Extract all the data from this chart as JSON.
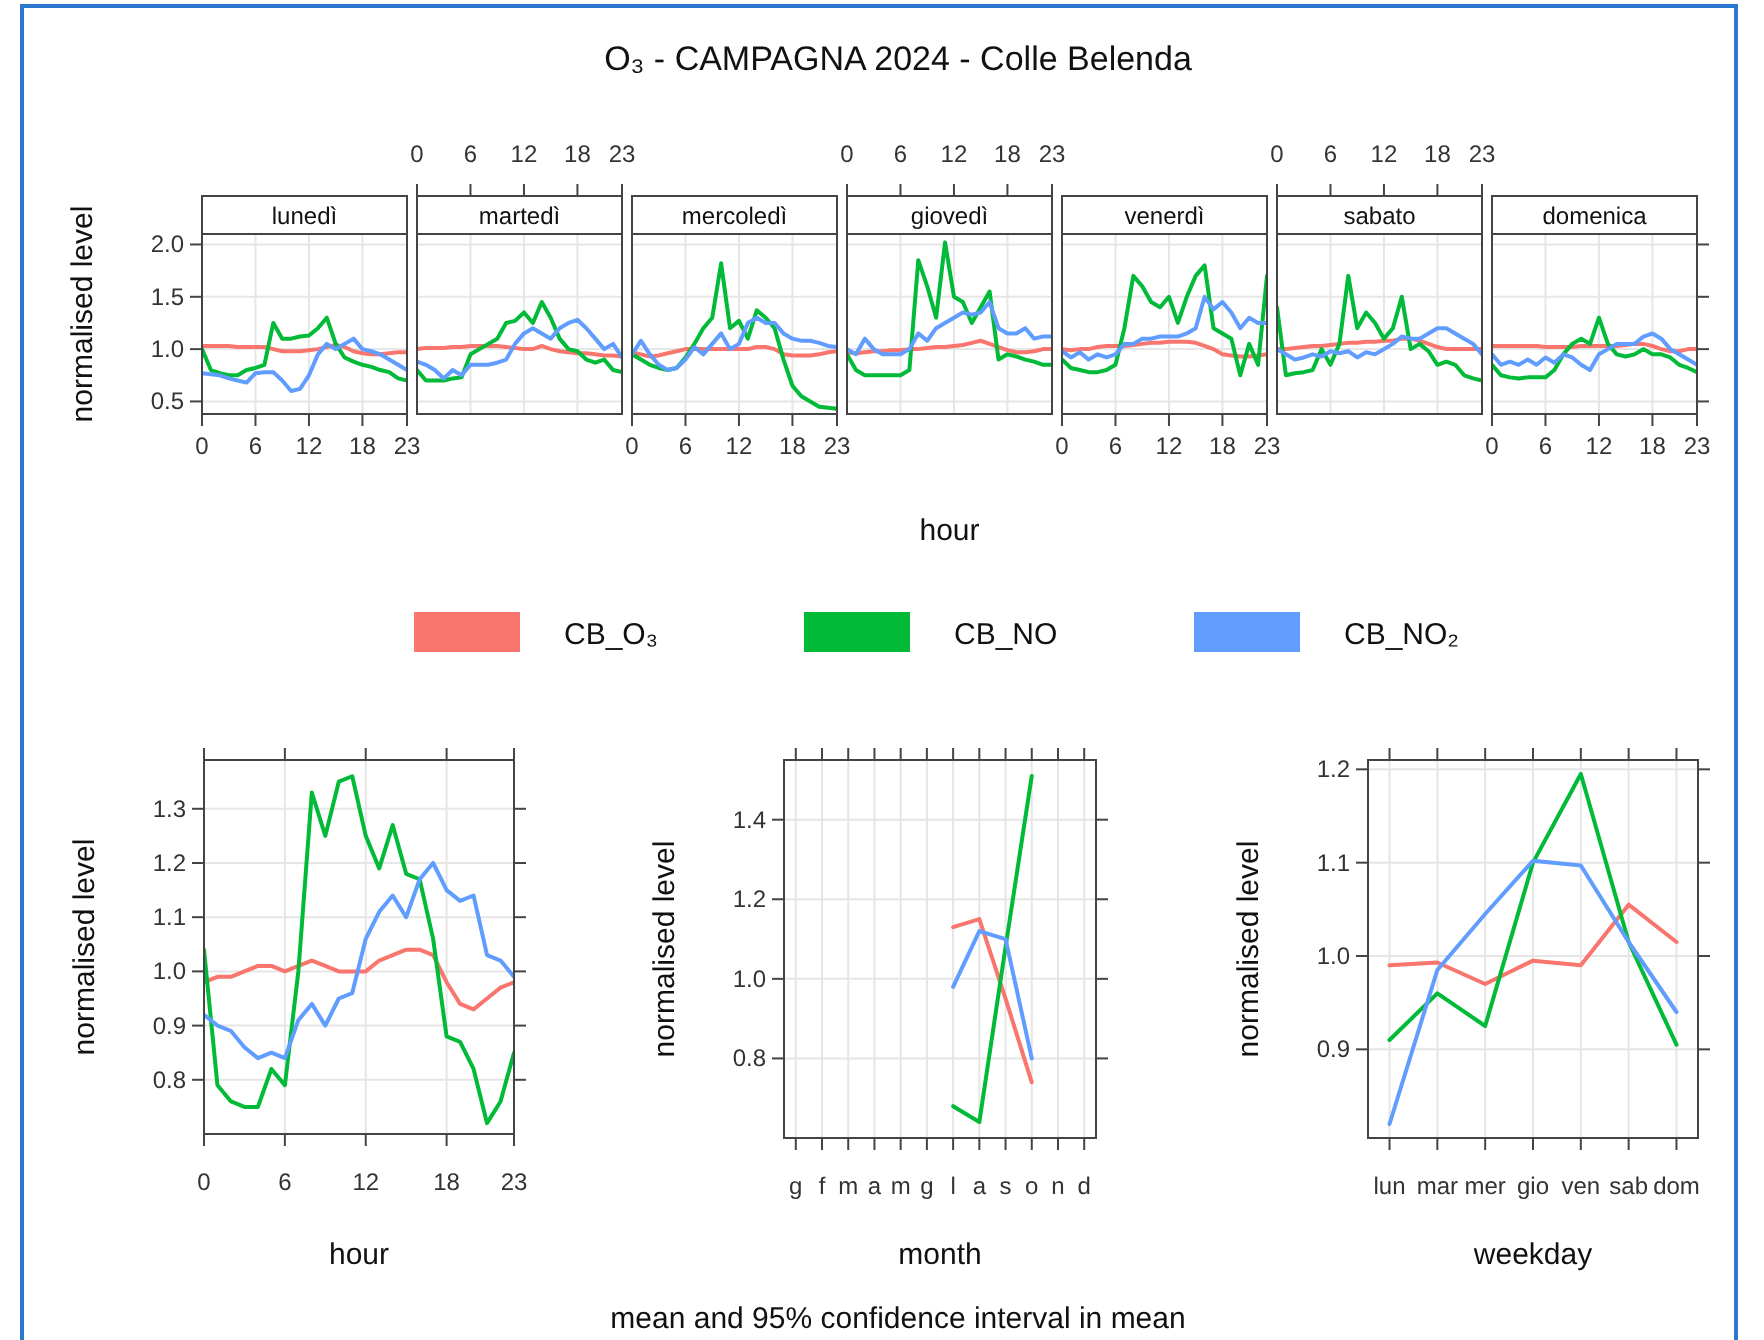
{
  "chart_data": [
    {
      "type": "other",
      "title": "O₃ - CAMPAGNA 2024 - Colle Belenda",
      "annotations": [
        "mean and 95% confidence interval in mean"
      ]
    },
    {
      "type": "line",
      "title": "lunedì",
      "ylabel": "normalised level",
      "legend": "bottom",
      "grid": true,
      "x": [
        0,
        1,
        2,
        3,
        4,
        5,
        6,
        7,
        8,
        9,
        10,
        11,
        12,
        13,
        14,
        15,
        16,
        17,
        18,
        19,
        20,
        21,
        22,
        23
      ],
      "xlim": [
        0,
        23
      ],
      "xticks": [
        0,
        6,
        12,
        18,
        23
      ],
      "ylim": [
        0.38,
        2.1
      ],
      "yticks": [
        {
          "value": 0.5,
          "label": "0.5"
        },
        {
          "value": 1,
          "label": "1.0"
        },
        {
          "value": 1.5,
          "label": "1.5"
        },
        {
          "value": 2,
          "label": "2.0"
        }
      ],
      "series": [
        {
          "name": "CB_O₃",
          "color": "#f8766d",
          "values": [
            1.03,
            1.03,
            1.03,
            1.03,
            1.02,
            1.02,
            1.02,
            1.02,
            1.0,
            0.98,
            0.98,
            0.98,
            0.99,
            1.0,
            1.02,
            1.04,
            1.02,
            0.98,
            0.96,
            0.95,
            0.95,
            0.96,
            0.97,
            0.97
          ]
        },
        {
          "name": "CB_NO",
          "color": "#00ba38",
          "values": [
            1.0,
            0.8,
            0.77,
            0.75,
            0.75,
            0.8,
            0.82,
            0.85,
            1.25,
            1.1,
            1.1,
            1.12,
            1.13,
            1.2,
            1.3,
            1.05,
            0.92,
            0.88,
            0.85,
            0.83,
            0.8,
            0.78,
            0.72,
            0.7
          ]
        },
        {
          "name": "CB_NO₂",
          "color": "#619cff",
          "values": [
            0.77,
            0.76,
            0.75,
            0.72,
            0.7,
            0.68,
            0.77,
            0.78,
            0.78,
            0.7,
            0.6,
            0.62,
            0.75,
            0.95,
            1.05,
            1.0,
            1.05,
            1.1,
            1.0,
            0.98,
            0.95,
            0.9,
            0.85,
            0.8
          ]
        }
      ]
    },
    {
      "type": "line",
      "title": "martedì",
      "tick_labels": "x",
      "grid": true,
      "x": [
        0,
        1,
        2,
        3,
        4,
        5,
        6,
        7,
        8,
        9,
        10,
        11,
        12,
        13,
        14,
        15,
        16,
        17,
        18,
        19,
        20,
        21,
        22,
        23
      ],
      "xlim": [
        0,
        23
      ],
      "x2lim": [
        0,
        23
      ],
      "x2ticks": [
        0,
        6,
        12,
        18,
        23
      ],
      "ylim": [
        0.38,
        2.1
      ],
      "yticks": [
        0.5,
        1,
        1.5,
        2
      ],
      "series": [
        {
          "color": "#f8766d",
          "values": [
            1.0,
            1.01,
            1.01,
            1.01,
            1.02,
            1.02,
            1.03,
            1.03,
            1.03,
            1.03,
            1.02,
            1.01,
            1.0,
            1.0,
            1.03,
            1.0,
            0.98,
            0.97,
            0.96,
            0.96,
            0.95,
            0.94,
            0.94,
            0.93
          ]
        },
        {
          "color": "#00ba38",
          "values": [
            0.8,
            0.7,
            0.7,
            0.7,
            0.72,
            0.73,
            0.95,
            1.0,
            1.05,
            1.1,
            1.25,
            1.27,
            1.35,
            1.25,
            1.45,
            1.3,
            1.1,
            1.0,
            0.98,
            0.9,
            0.87,
            0.9,
            0.8,
            0.78
          ]
        },
        {
          "color": "#619cff",
          "values": [
            0.88,
            0.85,
            0.8,
            0.72,
            0.8,
            0.75,
            0.85,
            0.85,
            0.85,
            0.87,
            0.9,
            1.05,
            1.15,
            1.2,
            1.15,
            1.1,
            1.2,
            1.25,
            1.28,
            1.2,
            1.1,
            1.0,
            1.05,
            0.92
          ]
        }
      ]
    },
    {
      "type": "line",
      "title": "mercoledì",
      "tick_labels": "x",
      "grid": true,
      "x": [
        0,
        1,
        2,
        3,
        4,
        5,
        6,
        7,
        8,
        9,
        10,
        11,
        12,
        13,
        14,
        15,
        16,
        17,
        18,
        19,
        20,
        21,
        22,
        23
      ],
      "xlim": [
        0,
        23
      ],
      "xticks": [
        0,
        6,
        12,
        18,
        23
      ],
      "ylim": [
        0.38,
        2.1
      ],
      "yticks": [
        0.5,
        1,
        1.5,
        2
      ],
      "series": [
        {
          "color": "#f8766d",
          "values": [
            0.97,
            0.95,
            0.93,
            0.94,
            0.96,
            0.98,
            1.0,
            1.0,
            1.0,
            1.0,
            1.0,
            1.0,
            1.0,
            1.0,
            1.02,
            1.02,
            1.0,
            0.95,
            0.94,
            0.94,
            0.94,
            0.95,
            0.97,
            0.98
          ]
        },
        {
          "color": "#00ba38",
          "values": [
            0.95,
            0.9,
            0.85,
            0.82,
            0.8,
            0.82,
            0.92,
            1.05,
            1.2,
            1.3,
            1.82,
            1.2,
            1.27,
            1.1,
            1.37,
            1.3,
            1.2,
            0.9,
            0.65,
            0.55,
            0.5,
            0.45,
            0.44,
            0.43
          ]
        },
        {
          "color": "#619cff",
          "values": [
            0.95,
            1.08,
            0.95,
            0.85,
            0.8,
            0.82,
            0.9,
            1.02,
            0.95,
            1.05,
            1.15,
            1.0,
            1.05,
            1.25,
            1.3,
            1.25,
            1.25,
            1.15,
            1.1,
            1.08,
            1.08,
            1.06,
            1.03,
            1.02
          ]
        }
      ]
    },
    {
      "type": "line",
      "title": "giovedì",
      "xlabel": "hour",
      "tick_labels": "x",
      "grid": true,
      "x": [
        0,
        1,
        2,
        3,
        4,
        5,
        6,
        7,
        8,
        9,
        10,
        11,
        12,
        13,
        14,
        15,
        16,
        17,
        18,
        19,
        20,
        21,
        22,
        23
      ],
      "xlim": [
        0,
        23
      ],
      "x2lim": [
        0,
        23
      ],
      "x2ticks": [
        0,
        6,
        12,
        18,
        23
      ],
      "ylim": [
        0.38,
        2.1
      ],
      "yticks": [
        0.5,
        1,
        1.5,
        2
      ],
      "series": [
        {
          "color": "#f8766d",
          "values": [
            0.97,
            0.96,
            0.97,
            0.98,
            0.98,
            0.99,
            0.99,
            1.0,
            1.0,
            1.01,
            1.02,
            1.02,
            1.03,
            1.04,
            1.06,
            1.08,
            1.05,
            1.02,
            0.99,
            0.97,
            0.97,
            0.98,
            1.0,
            1.0
          ]
        },
        {
          "color": "#00ba38",
          "values": [
            0.95,
            0.8,
            0.75,
            0.75,
            0.75,
            0.75,
            0.75,
            0.8,
            1.85,
            1.6,
            1.3,
            2.02,
            1.5,
            1.45,
            1.25,
            1.4,
            1.55,
            0.9,
            0.95,
            0.93,
            0.9,
            0.88,
            0.85,
            0.85
          ]
        },
        {
          "color": "#619cff",
          "values": [
            1.0,
            0.95,
            1.1,
            1.0,
            0.95,
            0.95,
            0.95,
            1.0,
            1.15,
            1.08,
            1.2,
            1.25,
            1.3,
            1.35,
            1.33,
            1.35,
            1.45,
            1.2,
            1.15,
            1.15,
            1.2,
            1.1,
            1.12,
            1.12
          ]
        }
      ]
    },
    {
      "type": "line",
      "title": "venerdì",
      "tick_labels": "x",
      "grid": true,
      "x": [
        0,
        1,
        2,
        3,
        4,
        5,
        6,
        7,
        8,
        9,
        10,
        11,
        12,
        13,
        14,
        15,
        16,
        17,
        18,
        19,
        20,
        21,
        22,
        23
      ],
      "xlim": [
        0,
        23
      ],
      "xticks": [
        0,
        6,
        12,
        18,
        23
      ],
      "ylim": [
        0.38,
        2.1
      ],
      "yticks": [
        0.5,
        1,
        1.5,
        2
      ],
      "series": [
        {
          "color": "#f8766d",
          "values": [
            1.0,
            0.99,
            1.0,
            1.0,
            1.02,
            1.03,
            1.03,
            1.03,
            1.04,
            1.05,
            1.06,
            1.06,
            1.07,
            1.07,
            1.07,
            1.06,
            1.03,
            1.0,
            0.95,
            0.94,
            0.93,
            0.93,
            0.94,
            0.95
          ]
        },
        {
          "color": "#00ba38",
          "values": [
            0.9,
            0.82,
            0.8,
            0.78,
            0.78,
            0.8,
            0.85,
            1.2,
            1.7,
            1.6,
            1.45,
            1.4,
            1.5,
            1.25,
            1.5,
            1.7,
            1.8,
            1.2,
            1.15,
            1.1,
            0.75,
            1.05,
            0.85,
            1.7
          ]
        },
        {
          "color": "#619cff",
          "values": [
            0.98,
            0.92,
            0.97,
            0.9,
            0.95,
            0.92,
            0.95,
            1.05,
            1.05,
            1.1,
            1.1,
            1.12,
            1.12,
            1.12,
            1.15,
            1.2,
            1.5,
            1.38,
            1.45,
            1.35,
            1.2,
            1.3,
            1.25,
            1.25
          ]
        }
      ]
    },
    {
      "type": "line",
      "title": "sabato",
      "tick_labels": "x",
      "grid": true,
      "x": [
        0,
        1,
        2,
        3,
        4,
        5,
        6,
        7,
        8,
        9,
        10,
        11,
        12,
        13,
        14,
        15,
        16,
        17,
        18,
        19,
        20,
        21,
        22,
        23
      ],
      "xlim": [
        0,
        23
      ],
      "x2lim": [
        0,
        23
      ],
      "x2ticks": [
        0,
        6,
        12,
        18,
        23
      ],
      "ylim": [
        0.38,
        2.1
      ],
      "yticks": [
        0.5,
        1,
        1.5,
        2
      ],
      "series": [
        {
          "color": "#f8766d",
          "values": [
            1.0,
            1.0,
            1.01,
            1.02,
            1.03,
            1.03,
            1.04,
            1.05,
            1.06,
            1.06,
            1.07,
            1.07,
            1.08,
            1.08,
            1.1,
            1.1,
            1.08,
            1.05,
            1.02,
            1.0,
            1.0,
            1.0,
            1.0,
            1.0
          ]
        },
        {
          "color": "#00ba38",
          "values": [
            1.4,
            0.75,
            0.77,
            0.78,
            0.8,
            1.0,
            0.85,
            1.05,
            1.7,
            1.2,
            1.35,
            1.25,
            1.1,
            1.2,
            1.5,
            1.0,
            1.05,
            0.98,
            0.85,
            0.88,
            0.85,
            0.75,
            0.72,
            0.7
          ]
        },
        {
          "color": "#619cff",
          "values": [
            1.0,
            0.95,
            0.9,
            0.92,
            0.95,
            0.93,
            0.98,
            0.96,
            0.98,
            0.92,
            0.97,
            0.95,
            1.0,
            1.05,
            1.12,
            1.1,
            1.1,
            1.15,
            1.2,
            1.2,
            1.15,
            1.1,
            1.05,
            0.95
          ]
        }
      ]
    },
    {
      "type": "line",
      "title": "domenica",
      "tick_labels": "x",
      "grid": true,
      "x": [
        0,
        1,
        2,
        3,
        4,
        5,
        6,
        7,
        8,
        9,
        10,
        11,
        12,
        13,
        14,
        15,
        16,
        17,
        18,
        19,
        20,
        21,
        22,
        23
      ],
      "xlim": [
        0,
        23
      ],
      "xticks": [
        0,
        6,
        12,
        18,
        23
      ],
      "ylim": [
        0.38,
        2.1
      ],
      "yticks": [
        0.5,
        1,
        1.5,
        2
      ],
      "series": [
        {
          "color": "#f8766d",
          "values": [
            1.03,
            1.03,
            1.03,
            1.03,
            1.03,
            1.03,
            1.02,
            1.02,
            1.02,
            1.02,
            1.03,
            1.03,
            1.03,
            1.03,
            1.03,
            1.04,
            1.05,
            1.05,
            1.03,
            1.0,
            0.98,
            0.98,
            1.0,
            1.0
          ]
        },
        {
          "color": "#00ba38",
          "values": [
            0.85,
            0.75,
            0.73,
            0.72,
            0.73,
            0.73,
            0.73,
            0.8,
            0.95,
            1.05,
            1.1,
            1.05,
            1.3,
            1.05,
            0.95,
            0.93,
            0.95,
            1.0,
            0.95,
            0.95,
            0.92,
            0.85,
            0.82,
            0.78
          ]
        },
        {
          "color": "#619cff",
          "values": [
            0.95,
            0.85,
            0.88,
            0.85,
            0.9,
            0.85,
            0.92,
            0.87,
            0.95,
            0.92,
            0.85,
            0.8,
            0.95,
            1.0,
            1.05,
            1.05,
            1.05,
            1.12,
            1.15,
            1.1,
            1.0,
            0.95,
            0.9,
            0.85
          ]
        }
      ]
    },
    {
      "type": "line",
      "xlabel": "hour",
      "ylabel": "normalised level",
      "grid": true,
      "x": [
        0,
        1,
        2,
        3,
        4,
        5,
        6,
        7,
        8,
        9,
        10,
        11,
        12,
        13,
        14,
        15,
        16,
        17,
        18,
        19,
        20,
        21,
        22,
        23
      ],
      "xlim": [
        0,
        23
      ],
      "xticks": [
        0,
        6,
        12,
        18,
        23
      ],
      "ylim": [
        0.7,
        1.39
      ],
      "yticks": [
        0.8,
        0.9,
        {
          "value": 1,
          "label": "1.0"
        },
        1.1,
        1.2,
        1.3
      ],
      "series": [
        {
          "color": "#f8766d",
          "values": [
            0.98,
            0.99,
            0.99,
            1.0,
            1.01,
            1.01,
            1.0,
            1.01,
            1.02,
            1.01,
            1.0,
            1.0,
            1.0,
            1.02,
            1.03,
            1.04,
            1.04,
            1.03,
            0.98,
            0.94,
            0.93,
            0.95,
            0.97,
            0.98
          ]
        },
        {
          "color": "#00ba38",
          "values": [
            1.04,
            0.79,
            0.76,
            0.75,
            0.75,
            0.82,
            0.79,
            1.0,
            1.33,
            1.25,
            1.35,
            1.36,
            1.25,
            1.19,
            1.27,
            1.18,
            1.17,
            1.06,
            0.88,
            0.87,
            0.82,
            0.72,
            0.76,
            0.85
          ]
        },
        {
          "color": "#619cff",
          "values": [
            0.92,
            0.9,
            0.89,
            0.86,
            0.84,
            0.85,
            0.84,
            0.91,
            0.94,
            0.9,
            0.95,
            0.96,
            1.06,
            1.11,
            1.14,
            1.1,
            1.17,
            1.2,
            1.15,
            1.13,
            1.14,
            1.03,
            1.02,
            0.99
          ]
        }
      ]
    },
    {
      "type": "line",
      "xlabel": "month",
      "ylabel": "normalised level",
      "grid": true,
      "categories": [
        "g",
        "f",
        "m",
        "a",
        "m",
        "g",
        "l",
        "a",
        "s",
        "o",
        "n",
        "d"
      ],
      "ylim": [
        0.6,
        1.55
      ],
      "yticks": [
        0.8,
        {
          "value": 1,
          "label": "1.0"
        },
        1.2,
        1.4
      ],
      "series": [
        {
          "color": "#f8766d",
          "values": [
            null,
            null,
            null,
            null,
            null,
            null,
            1.13,
            1.15,
            0.95,
            0.74,
            null,
            null
          ]
        },
        {
          "color": "#00ba38",
          "values": [
            null,
            null,
            null,
            null,
            null,
            null,
            0.68,
            0.64,
            1.08,
            1.51,
            null,
            null
          ]
        },
        {
          "color": "#619cff",
          "values": [
            null,
            null,
            null,
            null,
            null,
            null,
            0.98,
            1.12,
            1.1,
            0.8,
            null,
            null
          ]
        }
      ]
    },
    {
      "type": "line",
      "xlabel": "weekday",
      "ylabel": "normalised level",
      "grid": true,
      "categories": [
        "lun",
        "mar",
        "mer",
        "gio",
        "ven",
        "sab",
        "dom"
      ],
      "ylim": [
        0.805,
        1.21
      ],
      "yticks": [
        0.9,
        {
          "value": 1,
          "label": "1.0"
        },
        1.1,
        1.2
      ],
      "series": [
        {
          "color": "#f8766d",
          "values": [
            0.99,
            0.993,
            0.97,
            0.995,
            0.99,
            1.055,
            1.015
          ]
        },
        {
          "color": "#00ba38",
          "values": [
            0.91,
            0.96,
            0.925,
            1.1,
            1.195,
            1.015,
            0.905
          ]
        },
        {
          "color": "#619cff",
          "values": [
            0.82,
            0.985,
            1.045,
            1.102,
            1.097,
            1.015,
            0.94
          ]
        }
      ]
    }
  ]
}
